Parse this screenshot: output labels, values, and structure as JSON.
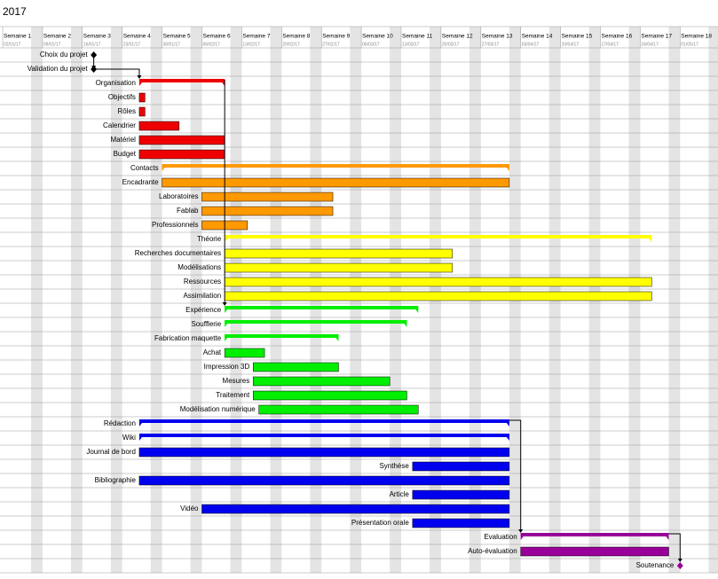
{
  "chart_data": {
    "type": "gantt",
    "title": "2017",
    "weeks": [
      "Semaine 1",
      "Semaine 2",
      "Semaine 3",
      "Semaine 4",
      "Semaine 5",
      "Semaine 6",
      "Semaine 7",
      "Semaine 8",
      "Semaine 9",
      "Semaine 10",
      "Semaine 11",
      "Semaine 12",
      "Semaine 13",
      "Semaine 14",
      "Semaine 15",
      "Semaine 16",
      "Semaine 17",
      "Semaine 18"
    ],
    "dates": [
      "02/01/17",
      "09/01/17",
      "16/01/17",
      "23/01/17",
      "30/01/17",
      "06/02/17",
      "13/02/17",
      "20/02/17",
      "27/02/17",
      "06/03/17",
      "13/03/17",
      "20/03/17",
      "27/03/17",
      "03/04/17",
      "10/04/17",
      "17/04/17",
      "24/04/17",
      "01/05/17"
    ],
    "xlim": [
      0,
      126
    ],
    "tasks": [
      {
        "name": "Choix du projet",
        "start": 16,
        "milestone": true,
        "color": "#000000"
      },
      {
        "name": "Validation du projet",
        "start": 16,
        "milestone": true,
        "color": "#000000"
      },
      {
        "name": "Organisation",
        "start": 24,
        "end": 39,
        "summary": true,
        "color": "#ee0000"
      },
      {
        "name": "Objectifs",
        "start": 24,
        "end": 25,
        "color": "#ee0000"
      },
      {
        "name": "Rôles",
        "start": 24,
        "end": 25,
        "color": "#ee0000"
      },
      {
        "name": "Calendrier",
        "start": 24,
        "end": 31,
        "color": "#ee0000"
      },
      {
        "name": "Matériel",
        "start": 24,
        "end": 39,
        "color": "#ee0000"
      },
      {
        "name": "Budget",
        "start": 24,
        "end": 39,
        "color": "#ee0000"
      },
      {
        "name": "Contacts",
        "start": 28,
        "end": 89,
        "summary": true,
        "color": "#ff9900"
      },
      {
        "name": "Encadrante",
        "start": 28,
        "end": 89,
        "color": "#ff9900"
      },
      {
        "name": "Laboratoires",
        "start": 35,
        "end": 58,
        "color": "#ff9900"
      },
      {
        "name": "Fablab",
        "start": 35,
        "end": 58,
        "color": "#ff9900"
      },
      {
        "name": "Professionnels",
        "start": 35,
        "end": 43,
        "color": "#ff9900"
      },
      {
        "name": "Théorie",
        "start": 39,
        "end": 114,
        "summary": true,
        "color": "#ffff00"
      },
      {
        "name": "Recherches documentaires",
        "start": 39,
        "end": 79,
        "color": "#ffff00"
      },
      {
        "name": "Modélisations",
        "start": 39,
        "end": 79,
        "color": "#ffff00"
      },
      {
        "name": "Ressources",
        "start": 39,
        "end": 114,
        "color": "#ffff00"
      },
      {
        "name": "Assimilation",
        "start": 39,
        "end": 114,
        "color": "#ffff00"
      },
      {
        "name": "Expérience",
        "start": 39,
        "end": 73,
        "summary": true,
        "color": "#00ee00"
      },
      {
        "name": "Soufflerie",
        "start": 39,
        "end": 71,
        "summary": true,
        "color": "#00ee00"
      },
      {
        "name": "Fabrication maquette",
        "start": 39,
        "end": 59,
        "summary": true,
        "color": "#00ee00"
      },
      {
        "name": "Achat",
        "start": 39,
        "end": 46,
        "color": "#00ee00"
      },
      {
        "name": "Impression 3D",
        "start": 44,
        "end": 59,
        "color": "#00ee00"
      },
      {
        "name": "Mesures",
        "start": 44,
        "end": 68,
        "color": "#00ee00"
      },
      {
        "name": "Traitement",
        "start": 44,
        "end": 71,
        "color": "#00ee00"
      },
      {
        "name": "Modélisation numérique",
        "start": 45,
        "end": 73,
        "color": "#00ee00"
      },
      {
        "name": "Rédaction",
        "start": 24,
        "end": 89,
        "summary": true,
        "color": "#0000ee"
      },
      {
        "name": "Wiki",
        "start": 24,
        "end": 89,
        "summary": true,
        "color": "#0000ee"
      },
      {
        "name": "Journal de bord",
        "start": 24,
        "end": 89,
        "color": "#0000ee"
      },
      {
        "name": "Synthèse",
        "start": 72,
        "end": 89,
        "color": "#0000ee"
      },
      {
        "name": "Bibliographie",
        "start": 24,
        "end": 89,
        "color": "#0000ee"
      },
      {
        "name": "Article",
        "start": 72,
        "end": 89,
        "color": "#0000ee"
      },
      {
        "name": "Vidéo",
        "start": 35,
        "end": 89,
        "color": "#0000ee"
      },
      {
        "name": "Présentation orale",
        "start": 72,
        "end": 89,
        "color": "#0000ee"
      },
      {
        "name": "Evaluation",
        "start": 91,
        "end": 117,
        "summary": true,
        "color": "#990099"
      },
      {
        "name": "Auto-évaluation",
        "start": 91,
        "end": 117,
        "color": "#990099"
      },
      {
        "name": "Soutenance",
        "start": 119,
        "milestone": true,
        "color": "#990099"
      }
    ]
  }
}
